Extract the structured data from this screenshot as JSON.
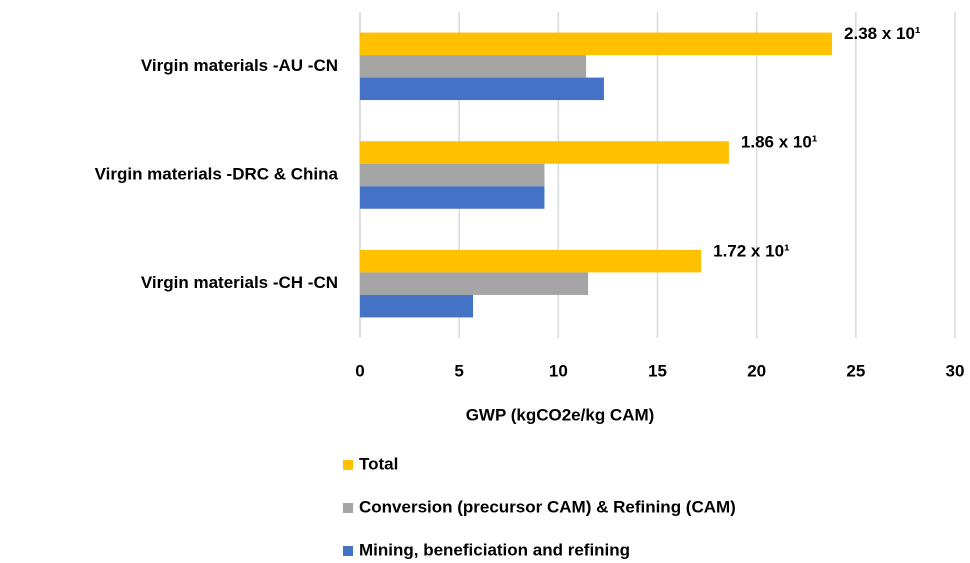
{
  "chart_data": {
    "type": "hbar",
    "xlabel": "GWP (kgCO2e/kg CAM)",
    "categories": [
      "Virgin materials -AU -CN",
      "Virgin materials -DRC & China",
      "Virgin materials -CH -CN"
    ],
    "series": [
      {
        "name": "Total",
        "color": "#ffc000",
        "values": [
          23.8,
          18.6,
          17.2
        ],
        "value_labels": [
          "2.38 x 10¹",
          "1.86 x 10¹",
          "1.72 x 10¹"
        ]
      },
      {
        "name": "Conversion (precursor CAM) & Refining (CAM)",
        "color": "#a5a5a5",
        "values": [
          11.4,
          9.3,
          11.5
        ]
      },
      {
        "name": "Mining, beneficiation and refining",
        "color": "#4472c4",
        "values": [
          12.3,
          9.3,
          5.7
        ]
      }
    ],
    "xlim": [
      0,
      30
    ],
    "xticks": [
      0,
      5,
      10,
      15,
      20,
      25,
      30
    ],
    "grid": true
  }
}
